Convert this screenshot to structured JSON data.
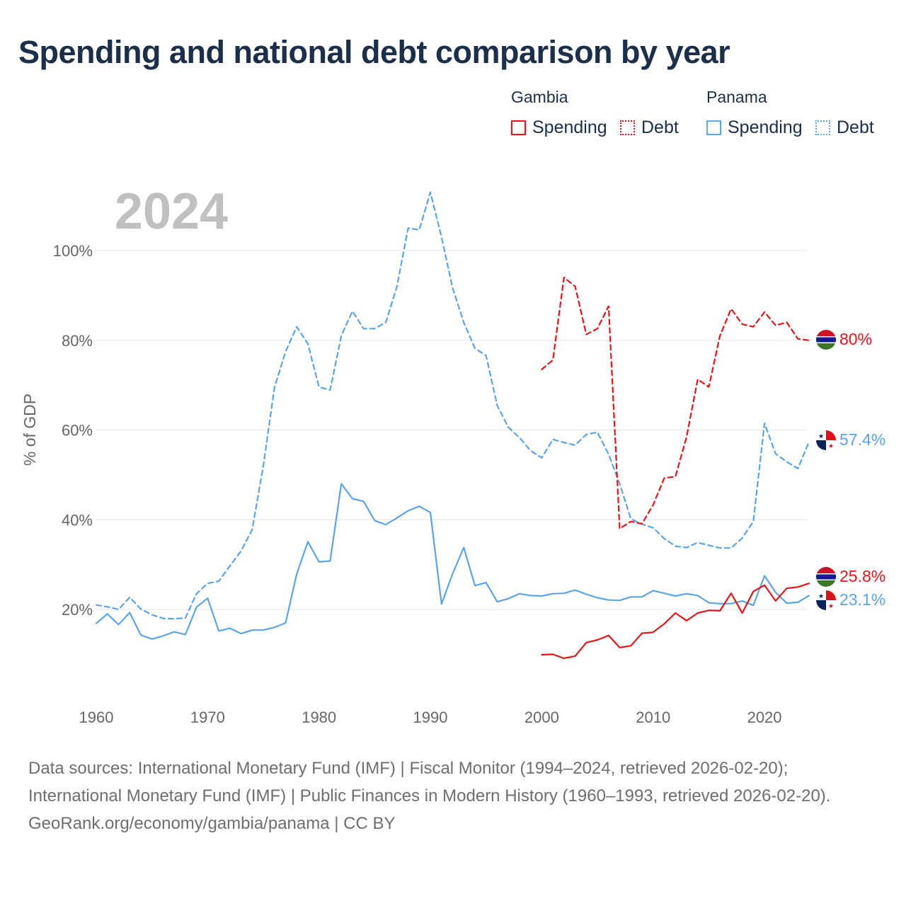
{
  "title": "Spending and national debt comparison by year",
  "year_label": "2024",
  "legend": {
    "gambia": {
      "name": "Gambia",
      "spending": "Spending",
      "debt": "Debt",
      "color": "#e3151a"
    },
    "panama": {
      "name": "Panama",
      "spending": "Spending",
      "debt": "Debt",
      "color": "#5ba4e6"
    }
  },
  "footer": {
    "sources": "Data sources: International Monetary Fund (IMF) | Fiscal Monitor (1994–2024, retrieved 2026-02-20); International Monetary Fund (IMF) | Public Finances in Modern History (1960–1993, retrieved 2026-02-20).",
    "link": "GeoRank.org/economy/gambia/panama | CC BY"
  },
  "end_labels": {
    "gambia_debt": "80%",
    "panama_debt": "57.4%",
    "gambia_spending": "25.8%",
    "panama_spending": "23.1%"
  },
  "chart_data": {
    "type": "line",
    "title": "Spending and national debt comparison by year",
    "ylabel": "% of GDP",
    "xlabel": "",
    "xlim": [
      1960,
      2024
    ],
    "ylim": [
      0,
      115
    ],
    "x_ticks": [
      1960,
      1970,
      1980,
      1990,
      2000,
      2010,
      2020
    ],
    "y_ticks": [
      20,
      40,
      60,
      80,
      100
    ],
    "y_tick_labels": [
      "20%",
      "40%",
      "60%",
      "80%",
      "100%"
    ],
    "x_tick_labels": [
      "1960",
      "1970",
      "1980",
      "1990",
      "2000",
      "2010",
      "2020"
    ],
    "grid": true,
    "series": [
      {
        "name": "Panama Debt",
        "country": "Panama",
        "metric": "Debt",
        "style": "dashed",
        "color": "#5ba4e6",
        "x": [
          1960,
          1961,
          1962,
          1963,
          1964,
          1965,
          1966,
          1967,
          1968,
          1969,
          1970,
          1971,
          1972,
          1973,
          1974,
          1975,
          1976,
          1977,
          1978,
          1979,
          1980,
          1981,
          1982,
          1983,
          1984,
          1985,
          1986,
          1987,
          1988,
          1989,
          1990,
          1991,
          1992,
          1993,
          1994,
          1995,
          1996,
          1997,
          1998,
          1999,
          2000,
          2001,
          2002,
          2003,
          2004,
          2005,
          2006,
          2007,
          2008,
          2009,
          2010,
          2011,
          2012,
          2013,
          2014,
          2015,
          2016,
          2017,
          2018,
          2019,
          2020,
          2021,
          2022,
          2023,
          2024
        ],
        "y": [
          21,
          20.6,
          20,
          22.7,
          20.1,
          18.8,
          18,
          17.9,
          18.1,
          23.5,
          25.8,
          26.3,
          29.7,
          33,
          37.8,
          52,
          69.5,
          77.5,
          83,
          79.2,
          69.6,
          68.9,
          81,
          86.5,
          82.6,
          82.6,
          84,
          92,
          105,
          104.6,
          113,
          103,
          91.6,
          84,
          78.2,
          76.6,
          65.5,
          60.6,
          58.3,
          55.4,
          53.8,
          57.9,
          57.2,
          56.6,
          59,
          59.5,
          54.6,
          48,
          40.2,
          39,
          38.2,
          35.8,
          34.1,
          33.8,
          34.9,
          34.3,
          33.7,
          33.7,
          35.9,
          39.6,
          61.5,
          54.7,
          52.9,
          51.4,
          57.4
        ]
      },
      {
        "name": "Panama Spending",
        "country": "Panama",
        "metric": "Spending",
        "style": "solid",
        "color": "#5ba4e6",
        "x": [
          1960,
          1961,
          1962,
          1963,
          1964,
          1965,
          1966,
          1967,
          1968,
          1969,
          1970,
          1971,
          1972,
          1973,
          1974,
          1975,
          1976,
          1977,
          1978,
          1979,
          1980,
          1981,
          1982,
          1983,
          1984,
          1985,
          1986,
          1987,
          1988,
          1989,
          1990,
          1991,
          1992,
          1993,
          1994,
          1995,
          1996,
          1997,
          1998,
          1999,
          2000,
          2001,
          2002,
          2003,
          2004,
          2005,
          2006,
          2007,
          2008,
          2009,
          2010,
          2011,
          2012,
          2013,
          2014,
          2015,
          2016,
          2017,
          2018,
          2019,
          2020,
          2021,
          2022,
          2023,
          2024
        ],
        "y": [
          16.9,
          19,
          16.6,
          19.3,
          14.3,
          13.4,
          14.1,
          15,
          14.4,
          20.5,
          22.5,
          15.2,
          15.8,
          14.6,
          15.4,
          15.4,
          16,
          17,
          27.9,
          35.1,
          30.6,
          30.8,
          48,
          44.7,
          44.1,
          39.8,
          38.9,
          40.4,
          42,
          43,
          41.6,
          21.2,
          28,
          33.8,
          25.3,
          26,
          21.7,
          22.4,
          23.5,
          23.1,
          23,
          23.5,
          23.6,
          24.3,
          23.4,
          22.6,
          22.1,
          22,
          22.8,
          22.8,
          24.2,
          23.6,
          23,
          23.5,
          23.1,
          21.5,
          21.3,
          21.3,
          21.9,
          20.9,
          27.5,
          23.8,
          21.4,
          21.6,
          23.1
        ]
      },
      {
        "name": "Gambia Debt",
        "country": "Gambia",
        "metric": "Debt",
        "style": "dashed",
        "color": "#e3151a",
        "x": [
          2000,
          2001,
          2002,
          2003,
          2004,
          2005,
          2006,
          2007,
          2008,
          2009,
          2010,
          2011,
          2012,
          2013,
          2014,
          2015,
          2016,
          2017,
          2018,
          2019,
          2020,
          2021,
          2022,
          2023,
          2024
        ],
        "y": [
          73.5,
          75.6,
          94,
          92,
          81.3,
          82.6,
          87.6,
          38,
          39.6,
          39.1,
          43.3,
          49.3,
          49.6,
          58.4,
          71.3,
          69.6,
          81,
          87,
          83.6,
          83,
          86.3,
          83.3,
          84,
          80.3,
          80
        ]
      },
      {
        "name": "Gambia Spending",
        "country": "Gambia",
        "metric": "Spending",
        "style": "solid",
        "color": "#e3151a",
        "x": [
          2000,
          2001,
          2002,
          2003,
          2004,
          2005,
          2006,
          2007,
          2008,
          2009,
          2010,
          2011,
          2012,
          2013,
          2014,
          2015,
          2016,
          2017,
          2018,
          2019,
          2020,
          2021,
          2022,
          2023,
          2024
        ],
        "y": [
          9.9,
          10,
          9.1,
          9.6,
          12.6,
          13.2,
          14.2,
          11.5,
          11.9,
          14.7,
          14.9,
          16.8,
          19.2,
          17.5,
          19.2,
          19.8,
          19.7,
          23.6,
          19.2,
          24,
          25.4,
          21.9,
          24.7,
          25,
          25.8
        ]
      }
    ],
    "end_labels": [
      "80%",
      "57.4%",
      "25.8%",
      "23.1%"
    ]
  }
}
